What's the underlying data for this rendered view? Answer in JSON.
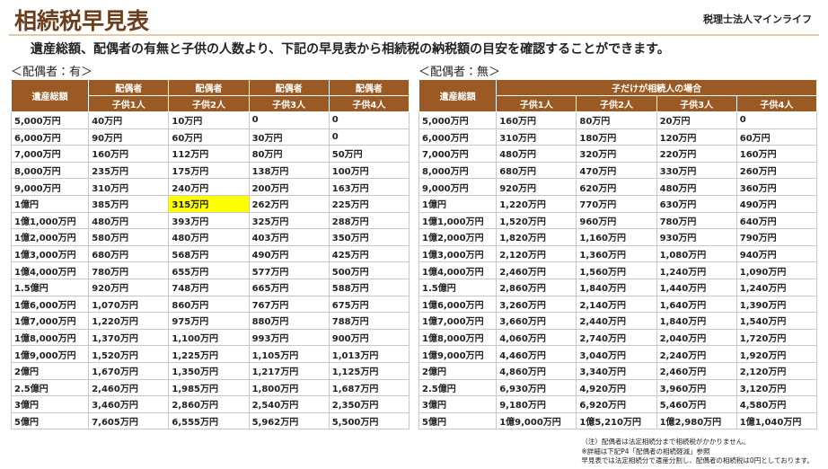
{
  "header": {
    "title": "相続税早見表",
    "company": "税理士法人マインライフ",
    "subtitle": "遺産総額、配偶者の有無と子供の人数より、下記の早見表から相続税の納税額の目安を確認することができます。"
  },
  "tables": [
    {
      "label": "＜配偶者：有＞",
      "first_header": "遺産総額",
      "groups": [
        "配偶者",
        "配偶者",
        "配偶者",
        "配偶者"
      ],
      "subheaders": [
        "子供1人",
        "子供2人",
        "子供3人",
        "子供4人"
      ],
      "highlight": {
        "row": 5,
        "col": 2
      },
      "rows": [
        [
          "5,000万円",
          "40万円",
          "10万円",
          "0",
          "0"
        ],
        [
          "6,000万円",
          "90万円",
          "60万円",
          "30万円",
          "0"
        ],
        [
          "7,000万円",
          "160万円",
          "112万円",
          "80万円",
          "50万円"
        ],
        [
          "8,000万円",
          "235万円",
          "175万円",
          "138万円",
          "100万円"
        ],
        [
          "9,000万円",
          "310万円",
          "240万円",
          "200万円",
          "163万円"
        ],
        [
          "1億円",
          "385万円",
          "315万円",
          "262万円",
          "225万円"
        ],
        [
          "1億1,000万円",
          "480万円",
          "393万円",
          "325万円",
          "288万円"
        ],
        [
          "1億2,000万円",
          "580万円",
          "480万円",
          "403万円",
          "350万円"
        ],
        [
          "1億3,000万円",
          "680万円",
          "568万円",
          "490万円",
          "425万円"
        ],
        [
          "1億4,000万円",
          "780万円",
          "655万円",
          "577万円",
          "500万円"
        ],
        [
          "1.5億円",
          "920万円",
          "748万円",
          "665万円",
          "588万円"
        ],
        [
          "1億6,000万円",
          "1,070万円",
          "860万円",
          "767万円",
          "675万円"
        ],
        [
          "1億7,000万円",
          "1,220万円",
          "975万円",
          "880万円",
          "788万円"
        ],
        [
          "1億8,000万円",
          "1,370万円",
          "1,100万円",
          "993万円",
          "900万円"
        ],
        [
          "1億9,000万円",
          "1,520万円",
          "1,225万円",
          "1,105万円",
          "1,013万円"
        ],
        [
          "2億円",
          "1,670万円",
          "1,350万円",
          "1,217万円",
          "1,125万円"
        ],
        [
          "2.5億円",
          "2,460万円",
          "1,985万円",
          "1,800万円",
          "1,687万円"
        ],
        [
          "3億円",
          "3,460万円",
          "2,860万円",
          "2,540万円",
          "2,350万円"
        ],
        [
          "5億円",
          "7,605万円",
          "6,555万円",
          "5,962万円",
          "5,500万円"
        ]
      ]
    },
    {
      "label": "＜配偶者：無＞",
      "first_header": "遺産総額",
      "groups": [
        "子だけが相続人の場合"
      ],
      "subheaders": [
        "子供1人",
        "子供2人",
        "子供3人",
        "子供4人"
      ],
      "rows": [
        [
          "5,000万円",
          "160万円",
          "80万円",
          "20万円",
          "0"
        ],
        [
          "6,000万円",
          "310万円",
          "180万円",
          "120万円",
          "60万円"
        ],
        [
          "7,000万円",
          "480万円",
          "320万円",
          "220万円",
          "160万円"
        ],
        [
          "8,000万円",
          "680万円",
          "470万円",
          "330万円",
          "260万円"
        ],
        [
          "9,000万円",
          "920万円",
          "620万円",
          "480万円",
          "360万円"
        ],
        [
          "1億円",
          "1,220万円",
          "770万円",
          "630万円",
          "490万円"
        ],
        [
          "1億1,000万円",
          "1,520万円",
          "960万円",
          "780万円",
          "640万円"
        ],
        [
          "1億2,000万円",
          "1,820万円",
          "1,160万円",
          "930万円",
          "790万円"
        ],
        [
          "1億3,000万円",
          "2,120万円",
          "1,360万円",
          "1,080万円",
          "940万円"
        ],
        [
          "1億4,000万円",
          "2,460万円",
          "1,560万円",
          "1,240万円",
          "1,090万円"
        ],
        [
          "1.5億円",
          "2,860万円",
          "1,840万円",
          "1,440万円",
          "1,240万円"
        ],
        [
          "1億6,000万円",
          "3,260万円",
          "2,140万円",
          "1,640万円",
          "1,390万円"
        ],
        [
          "1億7,000万円",
          "3,660万円",
          "2,440万円",
          "1,840万円",
          "1,540万円"
        ],
        [
          "1億8,000万円",
          "4,060万円",
          "2,740万円",
          "2,040万円",
          "1,720万円"
        ],
        [
          "1億9,000万円",
          "4,460万円",
          "3,040万円",
          "2,240万円",
          "1,920万円"
        ],
        [
          "2億円",
          "4,860万円",
          "3,340万円",
          "2,460万円",
          "2,120万円"
        ],
        [
          "2.5億円",
          "6,930万円",
          "4,920万円",
          "3,960万円",
          "3,120万円"
        ],
        [
          "3億円",
          "9,180万円",
          "6,920万円",
          "5,460万円",
          "4,580万円"
        ],
        [
          "5億円",
          "1億9,000万円",
          "1億5,210万円",
          "1億2,980万円",
          "1億1,040万円"
        ]
      ]
    }
  ],
  "notes": [
    "（注）配偶者は法定相続分まで相続税がかかりません。",
    "※詳細は下記P4「配偶者の相続軽減」参照",
    "早見表では法定相続分で遺産分割し、配偶者の相続税は0円としております。"
  ]
}
